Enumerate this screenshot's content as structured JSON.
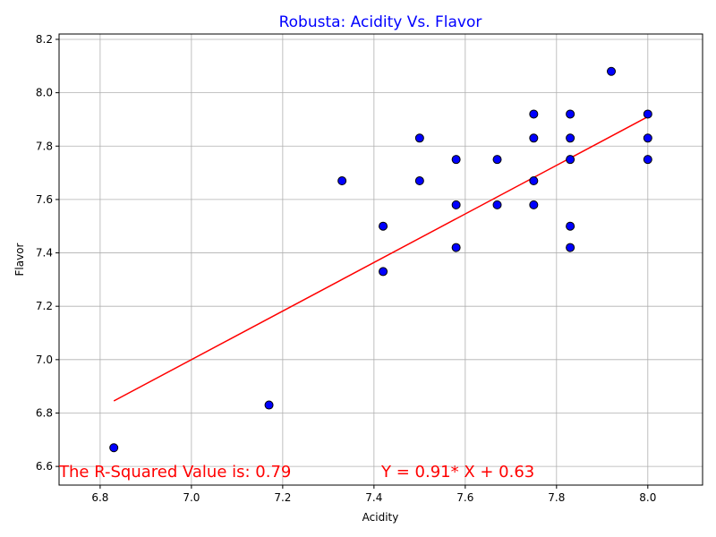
{
  "chart_data": {
    "type": "scatter",
    "title": "Robusta: Acidity Vs. Flavor",
    "xlabel": "Acidity",
    "ylabel": "Flavor",
    "xlim": [
      6.71,
      8.12
    ],
    "ylim": [
      6.53,
      8.22
    ],
    "xticks": [
      "6.8",
      "7.0",
      "7.2",
      "7.4",
      "7.6",
      "7.8",
      "8.0"
    ],
    "yticks": [
      "6.6",
      "6.8",
      "7.0",
      "7.2",
      "7.4",
      "7.6",
      "7.8",
      "8.0",
      "8.2"
    ],
    "grid": true,
    "points": [
      {
        "x": 6.83,
        "y": 6.67
      },
      {
        "x": 7.17,
        "y": 6.83
      },
      {
        "x": 7.33,
        "y": 7.67
      },
      {
        "x": 7.42,
        "y": 7.5
      },
      {
        "x": 7.42,
        "y": 7.33
      },
      {
        "x": 7.5,
        "y": 7.83
      },
      {
        "x": 7.5,
        "y": 7.67
      },
      {
        "x": 7.58,
        "y": 7.75
      },
      {
        "x": 7.58,
        "y": 7.58
      },
      {
        "x": 7.58,
        "y": 7.42
      },
      {
        "x": 7.67,
        "y": 7.75
      },
      {
        "x": 7.67,
        "y": 7.58
      },
      {
        "x": 7.75,
        "y": 7.92
      },
      {
        "x": 7.75,
        "y": 7.83
      },
      {
        "x": 7.75,
        "y": 7.67
      },
      {
        "x": 7.75,
        "y": 7.58
      },
      {
        "x": 7.83,
        "y": 7.92
      },
      {
        "x": 7.83,
        "y": 7.83
      },
      {
        "x": 7.83,
        "y": 7.75
      },
      {
        "x": 7.83,
        "y": 7.5
      },
      {
        "x": 7.83,
        "y": 7.42
      },
      {
        "x": 7.92,
        "y": 8.08
      },
      {
        "x": 8.0,
        "y": 7.92
      },
      {
        "x": 8.0,
        "y": 7.83
      },
      {
        "x": 8.0,
        "y": 7.75
      }
    ],
    "fit_line": {
      "slope": 0.91,
      "intercept": 0.63,
      "x_range": [
        6.83,
        8.0
      ]
    },
    "annotations": {
      "r_squared": "The R-Squared Value is: 0.79",
      "equation": "Y = 0.91* X + 0.63"
    },
    "colors": {
      "title": "#0000ff",
      "points": "#0000ff",
      "fit_line": "#ff0000",
      "annotations": "#ff0000"
    }
  }
}
